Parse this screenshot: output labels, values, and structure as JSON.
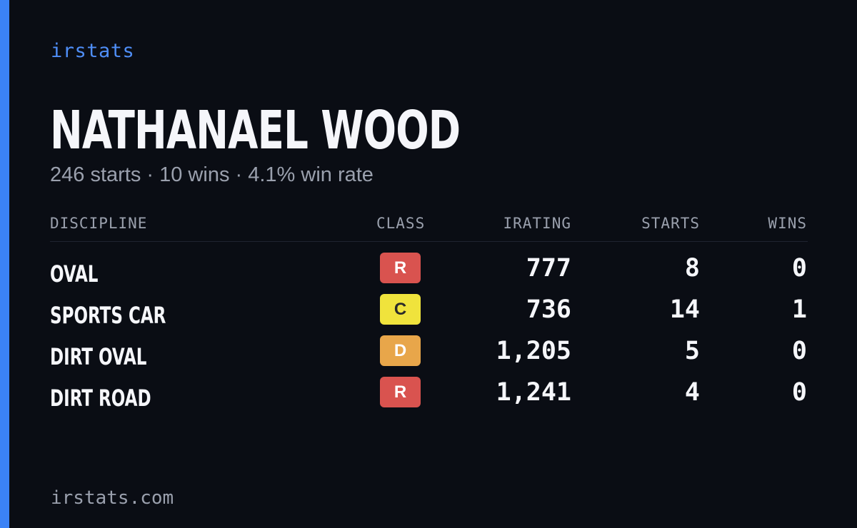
{
  "brand": "irstats",
  "driver": {
    "name": "NATHANAEL WOOD",
    "summary": "246 starts · 10 wins · 4.1% win rate"
  },
  "table": {
    "headers": {
      "discipline": "DISCIPLINE",
      "class": "CLASS",
      "irating": "IRATING",
      "starts": "STARTS",
      "wins": "WINS"
    },
    "rows": [
      {
        "discipline": "OVAL",
        "class": "R",
        "class_color": "#d9534f",
        "class_text_color": "#ffffff",
        "irating": "777",
        "starts": "8",
        "wins": "0"
      },
      {
        "discipline": "SPORTS CAR",
        "class": "C",
        "class_color": "#f0e33c",
        "class_text_color": "#2a2a2a",
        "irating": "736",
        "starts": "14",
        "wins": "1"
      },
      {
        "discipline": "DIRT OVAL",
        "class": "D",
        "class_color": "#e8a64a",
        "class_text_color": "#ffffff",
        "irating": "1,205",
        "starts": "5",
        "wins": "0"
      },
      {
        "discipline": "DIRT ROAD",
        "class": "R",
        "class_color": "#d9534f",
        "class_text_color": "#ffffff",
        "irating": "1,241",
        "starts": "4",
        "wins": "0"
      }
    ]
  },
  "footer": {
    "url": "irstats.com"
  },
  "colors": {
    "background": "#0a0d14",
    "accent": "#3b82f6"
  }
}
